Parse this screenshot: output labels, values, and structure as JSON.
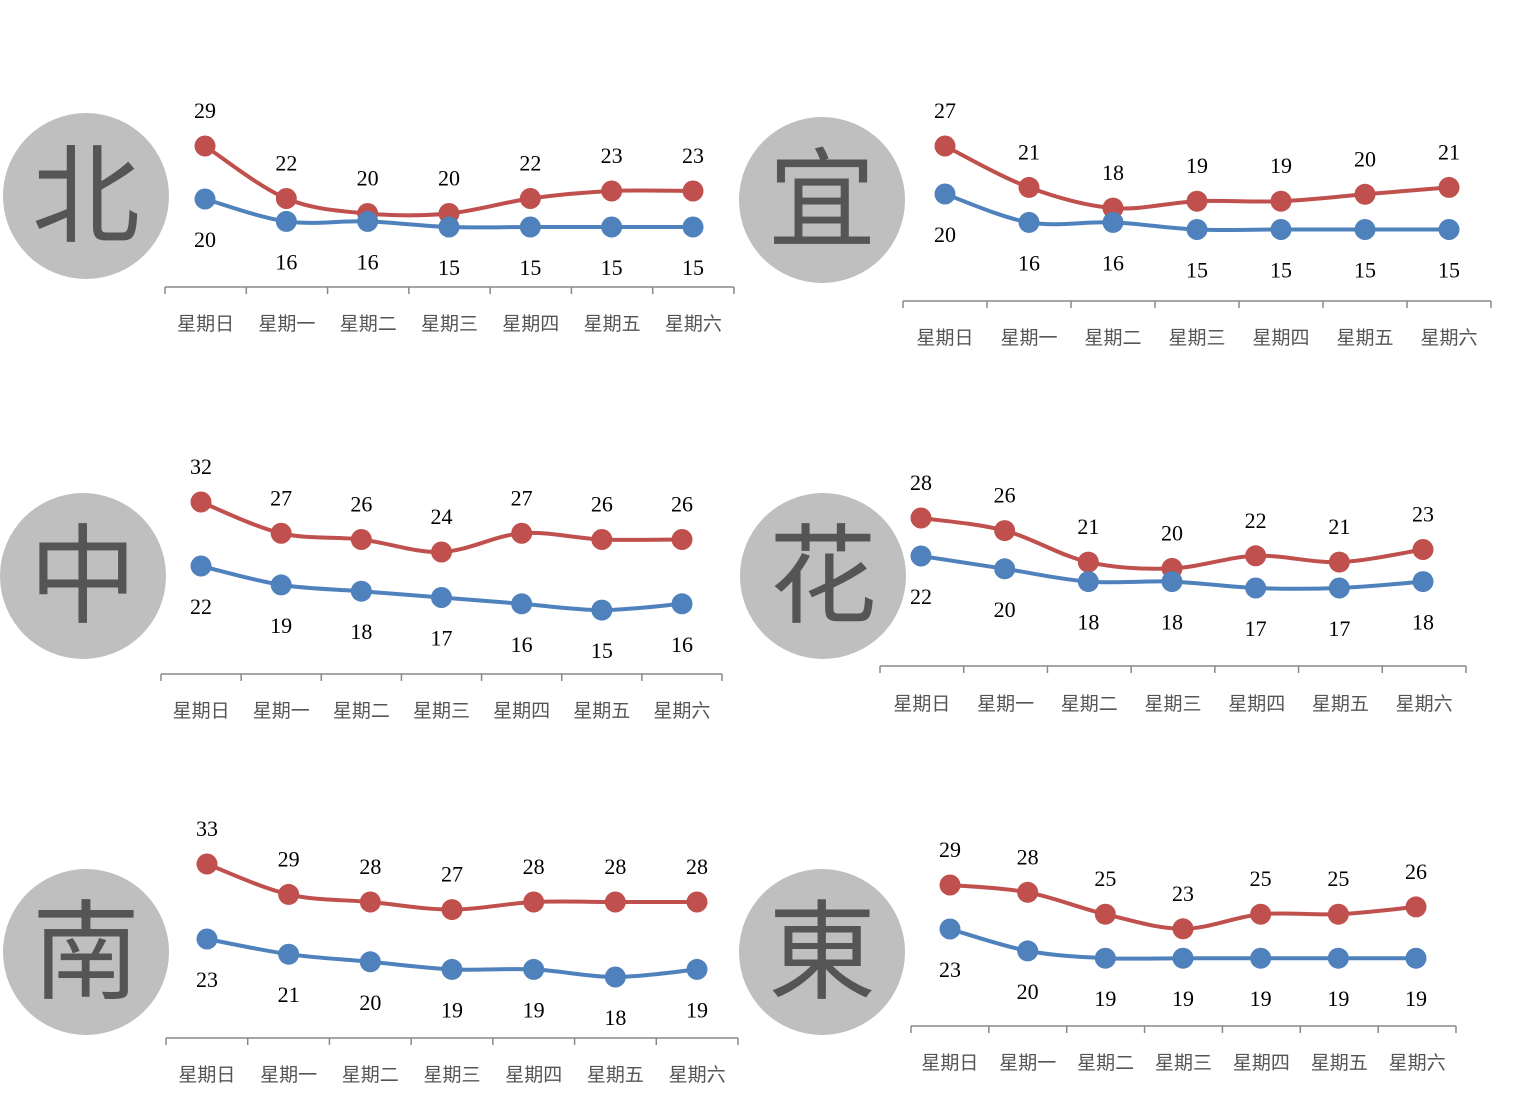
{
  "colors": {
    "high": "#c0504d",
    "low": "#4f81bd",
    "circle": "#bfbfbf",
    "axis": "#888888"
  },
  "chart_data": [
    {
      "type": "line",
      "region": "北",
      "categories": [
        "星期日",
        "星期一",
        "星期二",
        "星期三",
        "星期四",
        "星期五",
        "星期六"
      ],
      "series": [
        {
          "values": [
            29,
            22,
            20,
            20,
            22,
            23,
            23
          ]
        },
        {
          "values": [
            20,
            16,
            16,
            15,
            15,
            15,
            15
          ]
        }
      ]
    },
    {
      "type": "line",
      "region": "宜",
      "categories": [
        "星期日",
        "星期一",
        "星期二",
        "星期三",
        "星期四",
        "星期五",
        "星期六"
      ],
      "series": [
        {
          "values": [
            27,
            21,
            18,
            19,
            19,
            20,
            21
          ]
        },
        {
          "values": [
            20,
            16,
            16,
            15,
            15,
            15,
            15
          ]
        }
      ]
    },
    {
      "type": "line",
      "region": "中",
      "categories": [
        "星期日",
        "星期一",
        "星期二",
        "星期三",
        "星期四",
        "星期五",
        "星期六"
      ],
      "series": [
        {
          "values": [
            32,
            27,
            26,
            24,
            27,
            26,
            26
          ]
        },
        {
          "values": [
            22,
            19,
            18,
            17,
            16,
            15,
            16
          ]
        }
      ]
    },
    {
      "type": "line",
      "region": "花",
      "categories": [
        "星期日",
        "星期一",
        "星期二",
        "星期三",
        "星期四",
        "星期五",
        "星期六"
      ],
      "series": [
        {
          "values": [
            28,
            26,
            21,
            20,
            22,
            21,
            23
          ]
        },
        {
          "values": [
            22,
            20,
            18,
            18,
            17,
            17,
            18
          ]
        }
      ]
    },
    {
      "type": "line",
      "region": "南",
      "categories": [
        "星期日",
        "星期一",
        "星期二",
        "星期三",
        "星期四",
        "星期五",
        "星期六"
      ],
      "series": [
        {
          "values": [
            33,
            29,
            28,
            27,
            28,
            28,
            28
          ]
        },
        {
          "values": [
            23,
            21,
            20,
            19,
            19,
            18,
            19
          ]
        }
      ]
    },
    {
      "type": "line",
      "region": "東",
      "categories": [
        "星期日",
        "星期一",
        "星期二",
        "星期三",
        "星期四",
        "星期五",
        "星期六"
      ],
      "series": [
        {
          "values": [
            29,
            28,
            25,
            23,
            25,
            25,
            26
          ]
        },
        {
          "values": [
            23,
            20,
            19,
            19,
            19,
            19,
            19
          ]
        }
      ]
    }
  ]
}
